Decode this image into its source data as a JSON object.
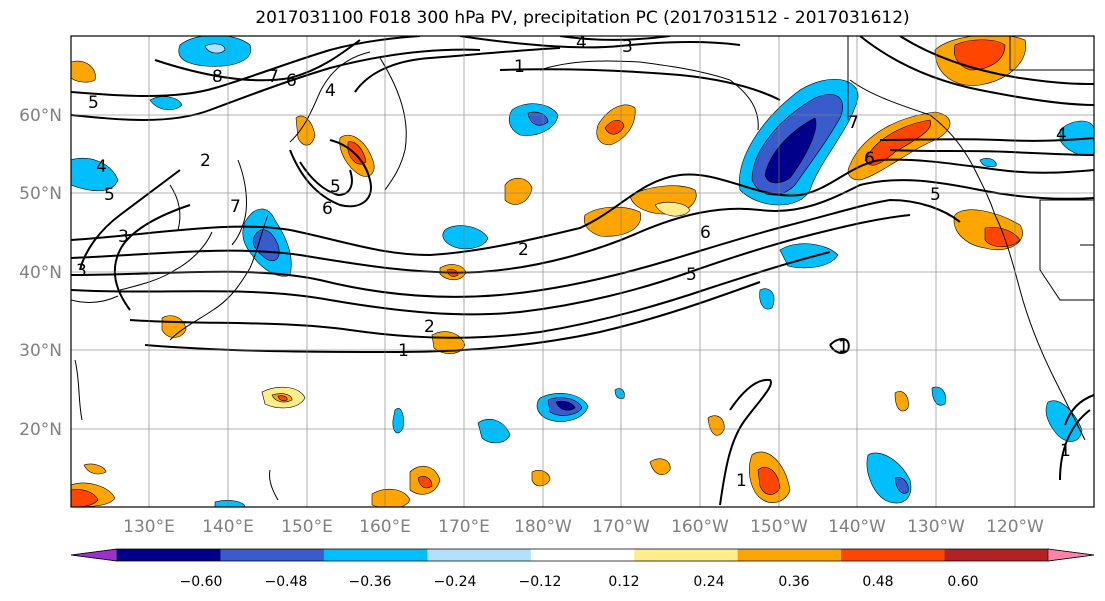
{
  "title": "2017031100 F018 300 hPa PV, precipitation PC (2017031512 - 2017031612)",
  "map": {
    "lon_labels": [
      "130°E",
      "140°E",
      "150°E",
      "160°E",
      "170°E",
      "180°W",
      "170°W",
      "160°W",
      "150°W",
      "140°W",
      "130°W",
      "120°W"
    ],
    "lat_labels": [
      "60°N",
      "50°N",
      "40°N",
      "30°N",
      "20°N"
    ],
    "contour_labels": [
      "8",
      "7",
      "6",
      "5",
      "4",
      "4",
      "3",
      "1",
      "2",
      "1",
      "2",
      "3",
      "5",
      "6",
      "7",
      "5",
      "6",
      "5",
      "4",
      "3",
      "2",
      "1",
      "1",
      "1",
      "5",
      "6",
      "7",
      "4"
    ]
  },
  "colorbar": {
    "colors": [
      "#9932cc",
      "#00008b",
      "#3a5bcb",
      "#00bfff",
      "#b0e2ff",
      "#ffffff",
      "#ffec8b",
      "#ffa500",
      "#ff4500",
      "#b22222",
      "#ff82ab"
    ],
    "tick_labels": [
      "−0.60",
      "−0.48",
      "−0.36",
      "−0.24",
      "−0.12",
      "0.12",
      "0.24",
      "0.36",
      "0.48",
      "0.60"
    ]
  }
}
